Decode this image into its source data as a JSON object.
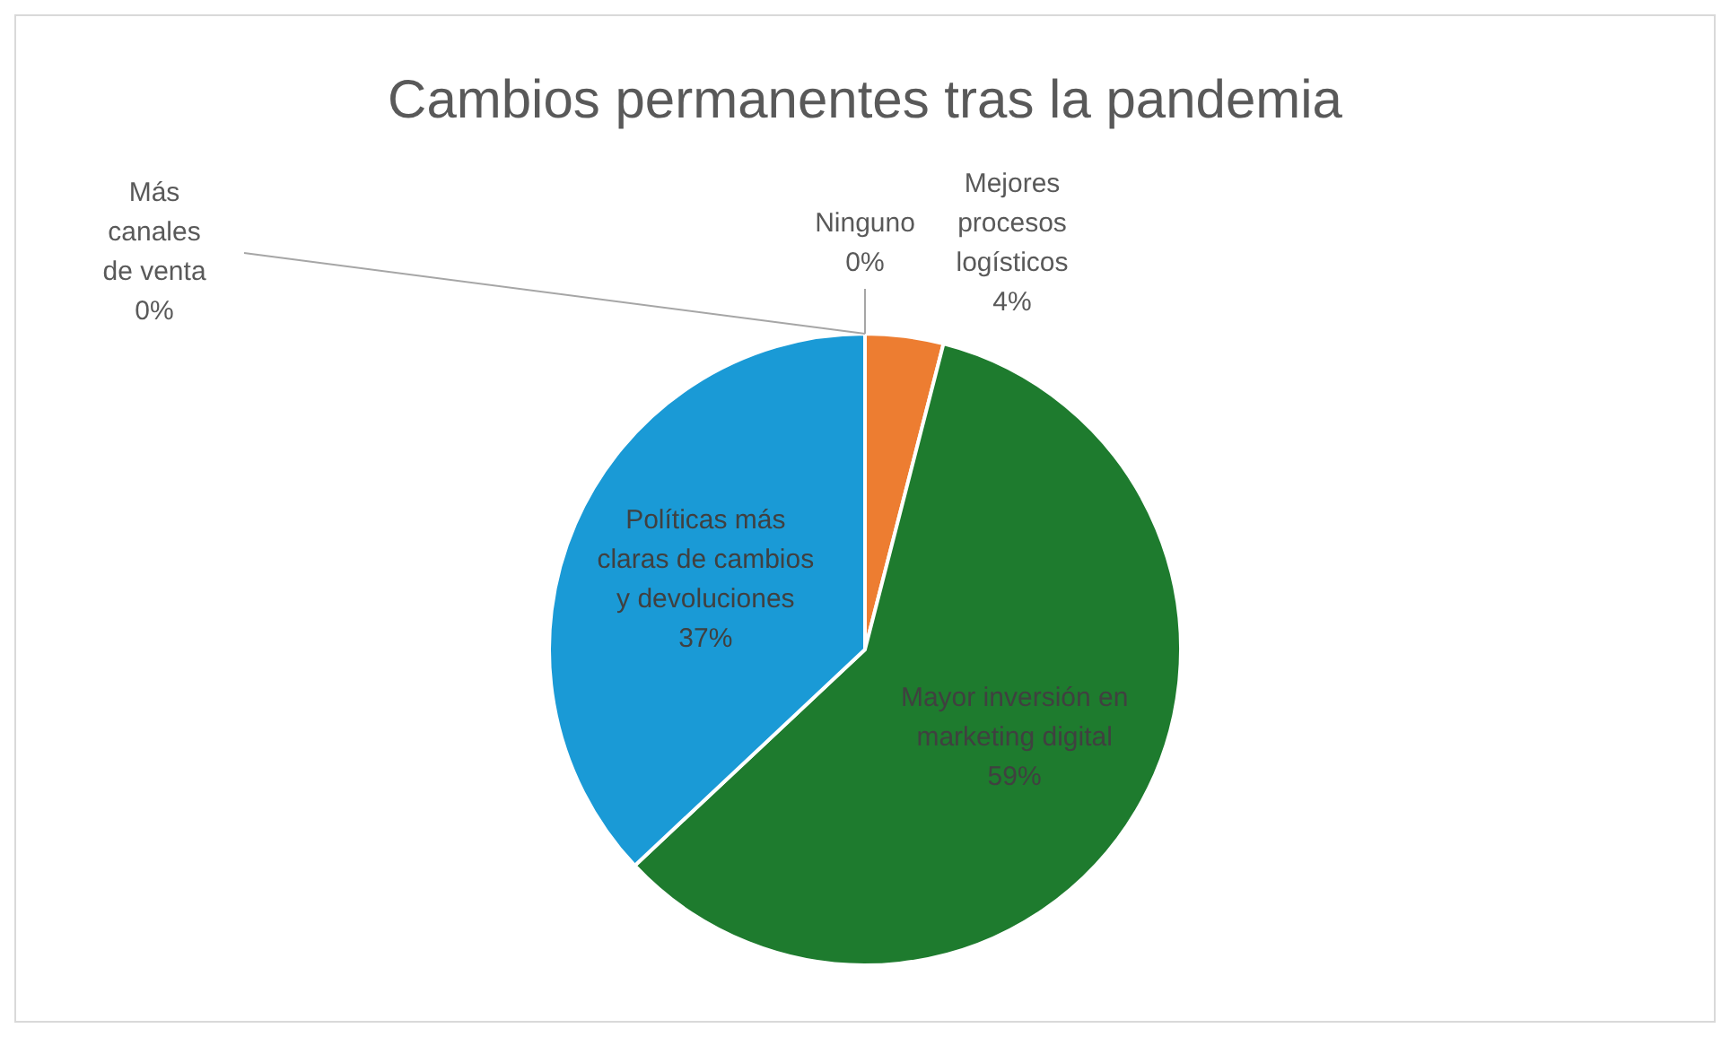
{
  "chart_data": {
    "type": "pie",
    "title": "Cambios permanentes tras la pandemia",
    "categories": [
      "Ninguno",
      "Mejores procesos logísticos",
      "Mayor inversión en marketing digital",
      "Políticas más claras de cambios y devoluciones",
      "Más canales de venta"
    ],
    "values": [
      0,
      4,
      59,
      37,
      0
    ],
    "colors": [
      "#a5a5a5",
      "#ed7d31",
      "#1e7b2e",
      "#1a9ad6",
      "#ffc000"
    ],
    "value_labels": [
      "0%",
      "4%",
      "59%",
      "37%",
      "0%"
    ],
    "legend": false
  }
}
